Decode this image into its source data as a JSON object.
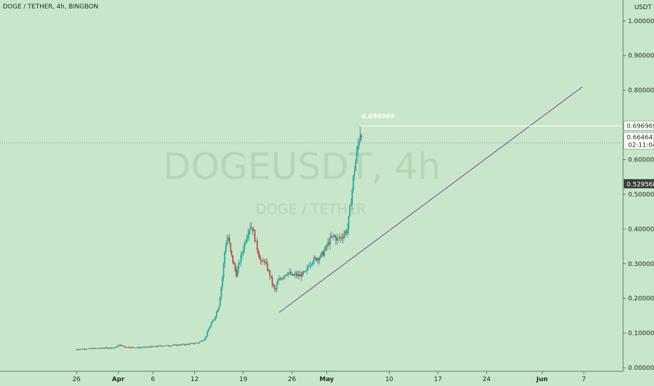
{
  "header": {
    "title": "DOGE / TETHER, 4h, BINGBON"
  },
  "watermark": {
    "symbol": "DOGEUSDT, 4h",
    "subtitle": "DOGE / TETHER"
  },
  "axis": {
    "unit": "USDT"
  },
  "annotation": {
    "peak_text": "0.696969"
  },
  "price_labels": {
    "peak": "0.6969690",
    "last": "0.6646430",
    "countdown": "02:11:04",
    "cursor": "0.5295680"
  },
  "chart_data": {
    "type": "candlestick",
    "title": "DOGE / TETHER, 4h, BINGBON",
    "ylabel": "USDT",
    "ylim": [
      -0.01,
      1.04
    ],
    "y_ticks": [
      0.0,
      0.1,
      0.2,
      0.3,
      0.4,
      0.5,
      0.6,
      0.7,
      0.8,
      0.9,
      1.0
    ],
    "y_tick_labels": [
      "0.0000000",
      "0.1000000",
      "0.2000000",
      "0.3000000",
      "0.4000000",
      "0.5000000",
      "0.6000000",
      "0.7000000",
      "0.8000000",
      "0.9000000",
      "1.0000000"
    ],
    "x_ticks": [
      {
        "day": 26,
        "label": "26"
      },
      {
        "day": 32,
        "label": "Apr"
      },
      {
        "day": 37,
        "label": "6"
      },
      {
        "day": 43,
        "label": "12"
      },
      {
        "day": 50,
        "label": "19"
      },
      {
        "day": 57,
        "label": "26"
      },
      {
        "day": 62,
        "label": "May"
      },
      {
        "day": 71,
        "label": "10"
      },
      {
        "day": 78,
        "label": "17"
      },
      {
        "day": 85,
        "label": "24"
      },
      {
        "day": 93,
        "label": "Jun"
      },
      {
        "day": 99,
        "label": "7"
      }
    ],
    "xlim": [
      26,
      99
    ],
    "price_path": [
      [
        26.0,
        0.053
      ],
      [
        28.0,
        0.055
      ],
      [
        30.0,
        0.057
      ],
      [
        31.5,
        0.058
      ],
      [
        32.2,
        0.066
      ],
      [
        33.0,
        0.06
      ],
      [
        35.0,
        0.058
      ],
      [
        37.0,
        0.061
      ],
      [
        38.0,
        0.063
      ],
      [
        40.0,
        0.065
      ],
      [
        42.0,
        0.068
      ],
      [
        43.5,
        0.072
      ],
      [
        44.5,
        0.085
      ],
      [
        45.2,
        0.12
      ],
      [
        45.8,
        0.14
      ],
      [
        46.5,
        0.18
      ],
      [
        47.0,
        0.26
      ],
      [
        47.4,
        0.35
      ],
      [
        47.8,
        0.38
      ],
      [
        48.2,
        0.33
      ],
      [
        48.6,
        0.3
      ],
      [
        49.0,
        0.27
      ],
      [
        49.4,
        0.3
      ],
      [
        49.8,
        0.33
      ],
      [
        50.2,
        0.36
      ],
      [
        50.6,
        0.39
      ],
      [
        51.0,
        0.41
      ],
      [
        51.4,
        0.4
      ],
      [
        51.8,
        0.36
      ],
      [
        52.2,
        0.33
      ],
      [
        52.6,
        0.3
      ],
      [
        53.0,
        0.31
      ],
      [
        53.4,
        0.29
      ],
      [
        53.8,
        0.27
      ],
      [
        54.2,
        0.24
      ],
      [
        54.6,
        0.22
      ],
      [
        55.0,
        0.25
      ],
      [
        55.5,
        0.26
      ],
      [
        56.0,
        0.27
      ],
      [
        56.5,
        0.275
      ],
      [
        57.0,
        0.265
      ],
      [
        57.5,
        0.268
      ],
      [
        58.0,
        0.265
      ],
      [
        58.5,
        0.27
      ],
      [
        59.0,
        0.275
      ],
      [
        59.5,
        0.3
      ],
      [
        60.0,
        0.31
      ],
      [
        60.5,
        0.315
      ],
      [
        61.0,
        0.32
      ],
      [
        61.5,
        0.33
      ],
      [
        62.0,
        0.35
      ],
      [
        62.5,
        0.37
      ],
      [
        63.0,
        0.38
      ],
      [
        63.5,
        0.37
      ],
      [
        64.0,
        0.375
      ],
      [
        64.5,
        0.385
      ],
      [
        65.0,
        0.4
      ],
      [
        65.3,
        0.45
      ],
      [
        65.6,
        0.5
      ],
      [
        65.9,
        0.56
      ],
      [
        66.2,
        0.6
      ],
      [
        66.5,
        0.64
      ],
      [
        66.8,
        0.68
      ],
      [
        67.1,
        0.665
      ]
    ],
    "marked_high": 0.696969,
    "last_price": 0.664643,
    "cursor_price": 0.529568,
    "trendline": {
      "start": [
        55.2,
        0.16
      ],
      "end": [
        98.8,
        0.81
      ]
    }
  }
}
